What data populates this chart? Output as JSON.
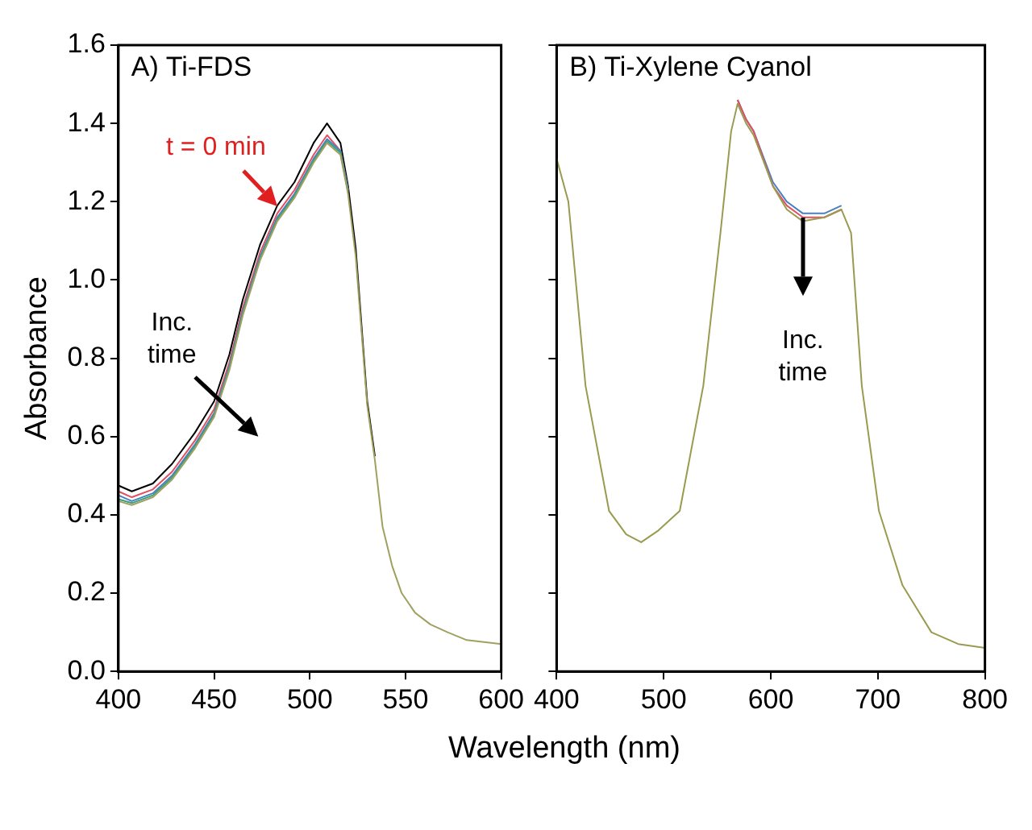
{
  "chart_data": [
    {
      "type": "line",
      "title": "A) Ti-FDS",
      "xlabel": "Wavelength (nm)",
      "ylabel": "Absorbance",
      "x": [
        400,
        407,
        418,
        428,
        440,
        450,
        458,
        465,
        474,
        483,
        492,
        502,
        509,
        516,
        520,
        524,
        530,
        534,
        538,
        543,
        548,
        555,
        563,
        572,
        582,
        600
      ],
      "series": [
        {
          "color": "#000000",
          "values": [
            0.475,
            0.46,
            0.48,
            0.53,
            0.61,
            0.69,
            0.81,
            0.95,
            1.09,
            1.19,
            1.25,
            1.35,
            1.4,
            1.35,
            1.24,
            1.08,
            0.69,
            0.55,
            null,
            null,
            null,
            null,
            null,
            null,
            null,
            null
          ]
        },
        {
          "color": "#e05060",
          "values": [
            0.46,
            0.445,
            0.465,
            0.51,
            0.59,
            0.67,
            0.79,
            0.93,
            1.07,
            1.17,
            1.23,
            1.32,
            1.37,
            1.33,
            1.23,
            null,
            null,
            null,
            null,
            null,
            null,
            null,
            null,
            null,
            null,
            null
          ]
        },
        {
          "color": "#4a7fc0",
          "values": [
            0.45,
            0.435,
            0.455,
            0.5,
            0.58,
            0.66,
            0.78,
            0.92,
            1.06,
            1.16,
            1.22,
            1.31,
            1.36,
            1.33,
            1.23,
            null,
            null,
            null,
            null,
            null,
            null,
            null,
            null,
            null,
            null,
            null
          ]
        },
        {
          "color": "#3aa080",
          "values": [
            0.44,
            0.43,
            0.45,
            0.495,
            0.575,
            0.655,
            0.775,
            0.915,
            1.055,
            1.155,
            1.215,
            1.305,
            1.355,
            1.325,
            1.225,
            null,
            null,
            null,
            null,
            null,
            null,
            null,
            null,
            null,
            null,
            null
          ]
        },
        {
          "color": "#a0a060",
          "values": [
            0.435,
            0.425,
            0.445,
            0.49,
            0.57,
            0.65,
            0.77,
            0.91,
            1.05,
            1.15,
            1.21,
            1.3,
            1.35,
            1.32,
            1.22,
            1.06,
            0.68,
            0.54,
            0.37,
            0.27,
            0.2,
            0.15,
            0.12,
            0.1,
            0.08,
            0.07
          ]
        }
      ],
      "xlim": [
        400,
        600
      ],
      "xticks": [
        400,
        450,
        500,
        550,
        600
      ],
      "ylim": [
        0,
        1.6
      ],
      "yticks": [
        "0.0",
        0.2,
        0.4,
        0.6,
        0.8,
        "1.0",
        1.2,
        1.4,
        1.6
      ],
      "annotations": [
        {
          "text": "t = 0 min",
          "x": 483,
          "y": 1.19
        },
        "Inc. time"
      ],
      "grid": false,
      "legend": false
    },
    {
      "type": "line",
      "title": "B) Ti-Xylene Cyanol",
      "x": [
        400,
        411,
        427,
        449,
        465,
        479,
        495,
        515,
        537,
        553,
        563,
        569,
        577,
        584,
        602,
        615,
        630,
        650,
        666,
        675,
        685,
        701,
        723,
        750,
        775,
        800
      ],
      "series": [
        {
          "color": "#4a7fc0",
          "values": [
            null,
            null,
            null,
            null,
            null,
            null,
            null,
            null,
            null,
            null,
            null,
            1.46,
            1.41,
            1.38,
            1.25,
            1.2,
            1.17,
            1.17,
            1.19,
            null,
            null,
            null,
            null,
            null,
            null,
            null
          ]
        },
        {
          "color": "#e05060",
          "values": [
            null,
            null,
            null,
            null,
            null,
            null,
            null,
            null,
            null,
            null,
            null,
            1.46,
            1.41,
            1.38,
            1.24,
            1.19,
            1.16,
            1.16,
            1.18,
            null,
            null,
            null,
            null,
            null,
            null,
            null
          ]
        },
        {
          "color": "#9a9a50",
          "values": [
            1.31,
            1.2,
            0.73,
            0.41,
            0.35,
            0.33,
            0.36,
            0.41,
            0.73,
            1.12,
            1.38,
            1.45,
            1.4,
            1.37,
            1.24,
            1.18,
            1.15,
            1.16,
            1.18,
            1.12,
            0.73,
            0.41,
            0.22,
            0.1,
            0.07,
            0.06
          ]
        }
      ],
      "xlim": [
        400,
        800
      ],
      "xticks": [
        400,
        500,
        600,
        700,
        800
      ],
      "ylim": [
        0,
        1.6
      ],
      "yticks": [
        0,
        0.2,
        0.4,
        0.6,
        0.8,
        1,
        1.2,
        1.4,
        1.6
      ],
      "tick_labels": "x",
      "annotations": [
        "Inc. time"
      ],
      "grid": false,
      "legend": false
    }
  ]
}
